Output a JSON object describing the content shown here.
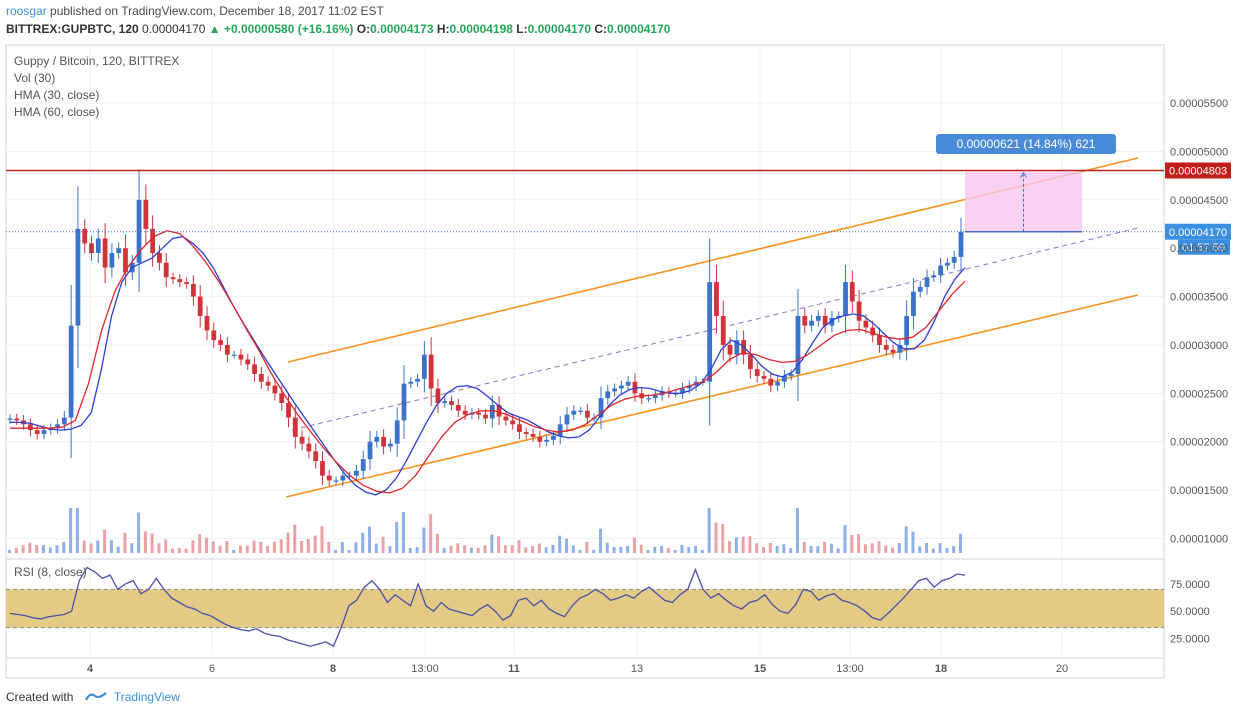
{
  "header": {
    "user": "roosgar",
    "published": "published on TradingView.com, December 18, 2017 11:02 EST",
    "symbol": "BITTREX:GUPBTC, 120",
    "last": "0.00004170",
    "change": "▲ +0.00000580 (+16.16%)",
    "o_label": "O:",
    "o": "0.00004173",
    "h_label": "H:",
    "h": "0.00004198",
    "l_label": "L:",
    "l": "0.00004170",
    "c_label": "C:",
    "c": "0.00004170"
  },
  "legend": {
    "title": "Guppy / Bitcoin, 120, BITTREX",
    "vol": "Vol (30)",
    "hma30": "HMA (30, close)",
    "hma60": "HMA (60, close)",
    "rsi": "RSI (8, close)"
  },
  "footer": {
    "created": "Created with",
    "brand": "TradingView"
  },
  "colors": {
    "up": "#3b73c8",
    "down": "#d0343a",
    "channel": "#f7931e",
    "resistance": "#c0201c",
    "hma30": "#2b3fd6",
    "hma60": "#e0262e",
    "rsi_band": "#d9b95c",
    "measure_fill": "#f7c6f0",
    "measure_badge": "#4a8bd8"
  },
  "chart_data": {
    "type": "candlestick",
    "price_axis": {
      "ylim": [
        8.5e-06,
        6.1e-05
      ],
      "ticks": [
        "0.00001000",
        "0.00001500",
        "0.00002000",
        "0.00002500",
        "0.00003000",
        "0.00003500",
        "0.00004000",
        "0.00004500",
        "0.00005000",
        "0.00005500"
      ],
      "tick_values": [
        1e-05,
        1.5e-05,
        2e-05,
        2.5e-05,
        3e-05,
        3.5e-05,
        4e-05,
        4.5e-05,
        5e-05,
        5.5e-05
      ]
    },
    "x_ticks": [
      "4",
      "6",
      "8",
      "13:00",
      "11",
      "13",
      "15",
      "13:00",
      "18",
      "20"
    ],
    "x_ticks_bold": [
      true,
      false,
      true,
      false,
      true,
      false,
      true,
      false,
      true,
      false
    ],
    "last_price_label": "0.00004170",
    "last_price": 4.17e-05,
    "countdown_label": "01:57:59",
    "resistance_label": "0.00004803",
    "resistance": 4.803e-05,
    "measure": {
      "label": "0.00000621 (14.84%) 621",
      "from": 4.17e-05,
      "to": 4.791e-05
    },
    "rsi_axis": {
      "ylim": [
        10,
        95
      ],
      "ticks": [
        "25.0000",
        "50.0000",
        "75.0000"
      ],
      "tick_values": [
        25,
        50,
        75
      ],
      "band": [
        35,
        70
      ]
    },
    "series": [
      {
        "name": "price",
        "values": [
          2.24e-05,
          2.22e-05,
          2.18e-05,
          2.12e-05,
          2.08e-05,
          2.12e-05,
          2.14e-05,
          2.18e-05,
          2.25e-05,
          3.2e-05,
          4.2e-05,
          4.05e-05,
          3.95e-05,
          4.1e-05,
          3.8e-05,
          3.95e-05,
          4e-05,
          3.75e-05,
          3.85e-05,
          4.5e-05,
          4.2e-05,
          3.95e-05,
          3.85e-05,
          3.7e-05,
          3.68e-05,
          3.65e-05,
          3.63e-05,
          3.5e-05,
          3.3e-05,
          3.15e-05,
          3.05e-05,
          3e-05,
          2.9e-05,
          2.9e-05,
          2.85e-05,
          2.8e-05,
          2.7e-05,
          2.62e-05,
          2.58e-05,
          2.5e-05,
          2.4e-05,
          2.25e-05,
          2.05e-05,
          1.98e-05,
          1.9e-05,
          1.8e-05,
          1.65e-05,
          1.6e-05,
          1.6e-05,
          1.65e-05,
          1.65e-05,
          1.7e-05,
          1.82e-05,
          2e-05,
          2.05e-05,
          1.95e-05,
          1.98e-05,
          2.22e-05,
          2.6e-05,
          2.62e-05,
          2.65e-05,
          2.9e-05,
          2.55e-05,
          2.4e-05,
          2.42e-05,
          2.38e-05,
          2.32e-05,
          2.28e-05,
          2.3e-05,
          2.28e-05,
          2.24e-05,
          2.38e-05,
          2.26e-05,
          2.22e-05,
          2.18e-05,
          2.1e-05,
          2.08e-05,
          2.05e-05,
          2e-05,
          2.02e-05,
          2.06e-05,
          2.18e-05,
          2.28e-05,
          2.32e-05,
          2.32e-05,
          2.25e-05,
          2.25e-05,
          2.45e-05,
          2.52e-05,
          2.55e-05,
          2.58e-05,
          2.62e-05,
          2.5e-05,
          2.45e-05,
          2.45e-05,
          2.48e-05,
          2.52e-05,
          2.5e-05,
          2.5e-05,
          2.55e-05,
          2.58e-05,
          2.62e-05,
          2.62e-05,
          3.65e-05,
          3.3e-05,
          3e-05,
          2.9e-05,
          3.05e-05,
          2.9e-05,
          2.75e-05,
          2.68e-05,
          2.65e-05,
          2.58e-05,
          2.62e-05,
          2.68e-05,
          2.7e-05,
          3.3e-05,
          3.2e-05,
          3.25e-05,
          3.3e-05,
          3.2e-05,
          3.28e-05,
          3.3e-05,
          3.65e-05,
          3.45e-05,
          3.25e-05,
          3.18e-05,
          3.1e-05,
          3e-05,
          2.95e-05,
          2.92e-05,
          3e-05,
          3.3e-05,
          3.55e-05,
          3.6e-05,
          3.7e-05,
          3.72e-05,
          3.82e-05,
          3.85e-05,
          3.91e-05,
          4.17e-05
        ]
      },
      {
        "name": "HMA (30, close)",
        "values": [
          2.2e-05,
          2.2e-05,
          2.19e-05,
          2.16e-05,
          2.13e-05,
          2.12e-05,
          2.13e-05,
          2.17e-05,
          2.3e-05,
          2.75e-05,
          3.3e-05,
          3.65e-05,
          3.8e-05,
          3.85e-05,
          3.9e-05,
          4e-05,
          4.1e-05,
          4.12e-05,
          4.05e-05,
          3.95e-05,
          3.8e-05,
          3.6e-05,
          3.4e-05,
          3.22e-05,
          3.05e-05,
          2.88e-05,
          2.72e-05,
          2.56e-05,
          2.4e-05,
          2.25e-05,
          2.1e-05,
          1.95e-05,
          1.8e-05,
          1.66e-05,
          1.55e-05,
          1.48e-05,
          1.45e-05,
          1.5e-05,
          1.62e-05,
          1.8e-05,
          2e-05,
          2.2e-05,
          2.38e-05,
          2.5e-05,
          2.57e-05,
          2.58e-05,
          2.55e-05,
          2.47e-05,
          2.38e-05,
          2.3e-05,
          2.26e-05,
          2.22e-05,
          2.16e-05,
          2.1e-05,
          2.06e-05,
          2.04e-05,
          2.05e-05,
          2.12e-05,
          2.25e-05,
          2.38e-05,
          2.48e-05,
          2.54e-05,
          2.56e-05,
          2.55e-05,
          2.52e-05,
          2.5e-05,
          2.5e-05,
          2.53e-05,
          2.6e-05,
          2.75e-05,
          2.95e-05,
          3.05e-05,
          3e-05,
          2.9e-05,
          2.78e-05,
          2.7e-05,
          2.67e-05,
          2.72e-05,
          2.85e-05,
          3.02e-05,
          3.18e-05,
          3.26e-05,
          3.3e-05,
          3.32e-05,
          3.3e-05,
          3.22e-05,
          3.12e-05,
          3.02e-05,
          2.96e-05,
          2.96e-05,
          3.05e-05,
          3.25e-05,
          3.5e-05,
          3.68e-05,
          3.8e-05
        ]
      },
      {
        "name": "HMA (60, close)",
        "values": [
          2.14e-05,
          2.14e-05,
          2.14e-05,
          2.14e-05,
          2.15e-05,
          2.22e-05,
          2.6e-05,
          3.15e-05,
          3.55e-05,
          3.8e-05,
          3.98e-05,
          4.12e-05,
          4.18e-05,
          4.15e-05,
          4.02e-05,
          3.85e-05,
          3.65e-05,
          3.42e-05,
          3.18e-05,
          2.95e-05,
          2.7e-05,
          2.48e-05,
          2.28e-05,
          2.1e-05,
          1.93e-05,
          1.78e-05,
          1.65e-05,
          1.55e-05,
          1.49e-05,
          1.47e-05,
          1.52e-05,
          1.65e-05,
          1.85e-05,
          2.05e-05,
          2.2e-05,
          2.28e-05,
          2.32e-05,
          2.32e-05,
          2.28e-05,
          2.22e-05,
          2.16e-05,
          2.12e-05,
          2.1e-05,
          2.12e-05,
          2.18e-05,
          2.28e-05,
          2.38e-05,
          2.44e-05,
          2.47e-05,
          2.48e-05,
          2.5e-05,
          2.54e-05,
          2.58e-05,
          2.62e-05,
          2.72e-05,
          2.85e-05,
          2.92e-05,
          2.9e-05,
          2.85e-05,
          2.82e-05,
          2.83e-05,
          2.9e-05,
          3e-05,
          3.1e-05,
          3.15e-05,
          3.16e-05,
          3.12e-05,
          3.08e-05,
          3.06e-05,
          3.08e-05,
          3.18e-05,
          3.35e-05,
          3.52e-05,
          3.66e-05
        ]
      },
      {
        "name": "RSI (8, close)",
        "values": [
          48,
          47,
          46,
          44,
          43,
          45,
          46,
          47,
          50,
          78,
          90,
          86,
          80,
          83,
          70,
          75,
          78,
          66,
          70,
          80,
          70,
          62,
          58,
          54,
          52,
          48,
          46,
          42,
          38,
          35,
          33,
          32,
          34,
          30,
          28,
          27,
          24,
          22,
          20,
          18,
          20,
          22,
          18,
          35,
          55,
          60,
          72,
          78,
          70,
          58,
          65,
          60,
          55,
          75,
          55,
          50,
          58,
          52,
          50,
          48,
          46,
          52,
          56,
          50,
          42,
          46,
          60,
          62,
          55,
          60,
          52,
          48,
          45,
          55,
          62,
          65,
          70,
          66,
          60,
          62,
          65,
          62,
          68,
          72,
          66,
          60,
          58,
          65,
          70,
          88,
          70,
          62,
          66,
          60,
          55,
          52,
          58,
          60,
          65,
          56,
          50,
          48,
          56,
          70,
          68,
          60,
          64,
          66,
          60,
          58,
          55,
          50,
          44,
          42,
          48,
          55,
          62,
          70,
          78,
          80,
          72,
          78,
          80,
          84,
          83
        ]
      }
    ]
  }
}
